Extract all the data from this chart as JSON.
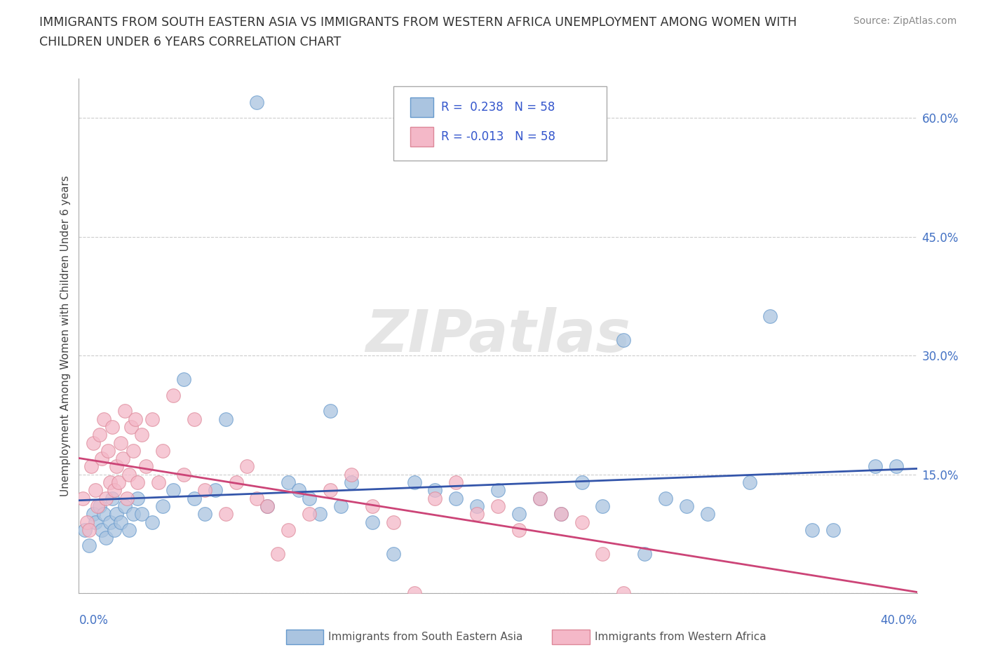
{
  "title_line1": "IMMIGRANTS FROM SOUTH EASTERN ASIA VS IMMIGRANTS FROM WESTERN AFRICA UNEMPLOYMENT AMONG WOMEN WITH",
  "title_line2": "CHILDREN UNDER 6 YEARS CORRELATION CHART",
  "source": "Source: ZipAtlas.com",
  "ylabel": "Unemployment Among Women with Children Under 6 years",
  "ytick_vals": [
    0,
    15,
    30,
    45,
    60
  ],
  "ytick_labels": [
    "",
    "15.0%",
    "30.0%",
    "45.0%",
    "60.0%"
  ],
  "R_blue": 0.238,
  "N_blue": 58,
  "R_pink": -0.013,
  "N_pink": 58,
  "blue_color": "#aac4e0",
  "blue_edge": "#6699cc",
  "pink_color": "#f4b8c8",
  "pink_edge": "#dd8899",
  "trend_blue": "#3355aa",
  "trend_pink": "#cc4477",
  "watermark": "ZIPatlas",
  "legend_label_blue": "Immigrants from South Eastern Asia",
  "legend_label_pink": "Immigrants from Western Africa",
  "blue_x": [
    0.3,
    0.5,
    0.7,
    0.8,
    1.0,
    1.1,
    1.2,
    1.3,
    1.5,
    1.6,
    1.7,
    1.8,
    2.0,
    2.2,
    2.4,
    2.6,
    2.8,
    3.0,
    3.5,
    4.0,
    4.5,
    5.0,
    5.5,
    6.0,
    6.5,
    7.0,
    8.5,
    9.0,
    10.0,
    10.5,
    11.0,
    11.5,
    12.0,
    12.5,
    13.0,
    14.0,
    15.0,
    16.0,
    17.0,
    18.0,
    19.0,
    20.0,
    21.0,
    22.0,
    23.0,
    24.0,
    25.0,
    26.0,
    27.0,
    28.0,
    29.0,
    30.0,
    32.0,
    33.0,
    35.0,
    36.0,
    38.0,
    39.0
  ],
  "blue_y": [
    8,
    6,
    10,
    9,
    11,
    8,
    10,
    7,
    9,
    12,
    8,
    10,
    9,
    11,
    8,
    10,
    12,
    10,
    9,
    11,
    13,
    27,
    12,
    10,
    13,
    22,
    62,
    11,
    14,
    13,
    12,
    10,
    23,
    11,
    14,
    9,
    5,
    14,
    13,
    12,
    11,
    13,
    10,
    12,
    10,
    14,
    11,
    32,
    5,
    12,
    11,
    10,
    14,
    35,
    8,
    8,
    16,
    16
  ],
  "pink_x": [
    0.2,
    0.4,
    0.5,
    0.6,
    0.7,
    0.8,
    0.9,
    1.0,
    1.1,
    1.2,
    1.3,
    1.4,
    1.5,
    1.6,
    1.7,
    1.8,
    1.9,
    2.0,
    2.1,
    2.2,
    2.3,
    2.4,
    2.5,
    2.6,
    2.7,
    2.8,
    3.0,
    3.2,
    3.5,
    3.8,
    4.0,
    4.5,
    5.0,
    5.5,
    6.0,
    7.0,
    7.5,
    8.0,
    8.5,
    9.0,
    9.5,
    10.0,
    11.0,
    12.0,
    13.0,
    14.0,
    15.0,
    16.0,
    17.0,
    18.0,
    19.0,
    20.0,
    21.0,
    22.0,
    23.0,
    24.0,
    25.0,
    26.0
  ],
  "pink_y": [
    12,
    9,
    8,
    16,
    19,
    13,
    11,
    20,
    17,
    22,
    12,
    18,
    14,
    21,
    13,
    16,
    14,
    19,
    17,
    23,
    12,
    15,
    21,
    18,
    22,
    14,
    20,
    16,
    22,
    14,
    18,
    25,
    15,
    22,
    13,
    10,
    14,
    16,
    12,
    11,
    5,
    8,
    10,
    13,
    15,
    11,
    9,
    0,
    12,
    14,
    10,
    11,
    8,
    12,
    10,
    9,
    5,
    0
  ]
}
